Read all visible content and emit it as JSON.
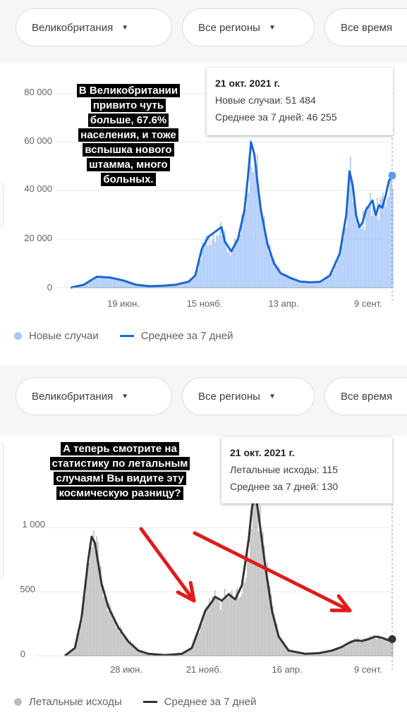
{
  "filters": {
    "country": "Великобритания",
    "region": "Все регионы",
    "period": "Все время"
  },
  "colors": {
    "cases_area": "#a8c7fa",
    "cases_line": "#1a67d2",
    "deaths_area": "#bdbdbd",
    "deaths_line": "#333333",
    "arrow": "#e01b1b"
  },
  "chart_data": [
    {
      "type": "area",
      "series": [
        {
          "name": "Новые случаи",
          "kind": "bars"
        },
        {
          "name": "Среднее за 7 дней",
          "kind": "line"
        }
      ],
      "y_ticks": [
        "0",
        "20 000",
        "40 000",
        "60 000",
        "80 000"
      ],
      "ylim": [
        0,
        80000
      ],
      "x_ticks": [
        "19 июн.",
        "15 нояб.",
        "13 апр.",
        "9 сент."
      ],
      "avg_points": [
        [
          0,
          0
        ],
        [
          4,
          1200
        ],
        [
          8,
          4500
        ],
        [
          12,
          4200
        ],
        [
          16,
          3000
        ],
        [
          20,
          1200
        ],
        [
          24,
          600
        ],
        [
          28,
          800
        ],
        [
          32,
          1200
        ],
        [
          36,
          2500
        ],
        [
          38,
          5000
        ],
        [
          40,
          16000
        ],
        [
          42,
          21000
        ],
        [
          44,
          23000
        ],
        [
          46,
          25000
        ],
        [
          47,
          19000
        ],
        [
          49,
          15000
        ],
        [
          51,
          20000
        ],
        [
          53,
          32000
        ],
        [
          54,
          45000
        ],
        [
          55,
          60000
        ],
        [
          56,
          55000
        ],
        [
          57,
          43000
        ],
        [
          58,
          32000
        ],
        [
          60,
          18000
        ],
        [
          62,
          10000
        ],
        [
          64,
          6000
        ],
        [
          67,
          4000
        ],
        [
          70,
          2500
        ],
        [
          73,
          2200
        ],
        [
          76,
          2400
        ],
        [
          79,
          5000
        ],
        [
          82,
          14000
        ],
        [
          84,
          30000
        ],
        [
          85,
          48000
        ],
        [
          86,
          42000
        ],
        [
          87,
          30000
        ],
        [
          88,
          25000
        ],
        [
          89,
          27000
        ],
        [
          90,
          32000
        ],
        [
          91,
          34000
        ],
        [
          92,
          36000
        ],
        [
          93,
          30000
        ],
        [
          94,
          34000
        ],
        [
          95,
          33000
        ],
        [
          96,
          38000
        ],
        [
          97,
          44000
        ],
        [
          98,
          46255
        ]
      ],
      "tooltip": {
        "date": "21 окт. 2021 г.",
        "line1": "Новые случаи: 51 484",
        "line2": "Среднее за 7 дней: 46 255"
      },
      "legend": [
        "Новые случаи",
        "Среднее за 7 дней"
      ],
      "annotation": [
        "В Великобритании",
        "привито чуть",
        "больше, 67.6%",
        "населения, и тоже",
        "вспышка нового",
        "штамма, много",
        "больных."
      ]
    },
    {
      "type": "area",
      "series": [
        {
          "name": "Летальные исходы",
          "kind": "bars"
        },
        {
          "name": "Среднее за 7 дней",
          "kind": "line"
        }
      ],
      "y_ticks": [
        "0",
        "500",
        "1 000"
      ],
      "ylim": [
        0,
        1250
      ],
      "x_ticks": [
        "28 июн.",
        "21 нояб.",
        "16 апр.",
        "9 сент."
      ],
      "avg_points": [
        [
          0,
          0
        ],
        [
          3,
          60
        ],
        [
          5,
          300
        ],
        [
          7,
          750
        ],
        [
          8,
          930
        ],
        [
          9,
          880
        ],
        [
          11,
          560
        ],
        [
          13,
          380
        ],
        [
          16,
          220
        ],
        [
          19,
          110
        ],
        [
          22,
          40
        ],
        [
          25,
          15
        ],
        [
          30,
          5
        ],
        [
          35,
          15
        ],
        [
          38,
          60
        ],
        [
          40,
          200
        ],
        [
          42,
          350
        ],
        [
          44,
          420
        ],
        [
          45,
          460
        ],
        [
          47,
          430
        ],
        [
          49,
          480
        ],
        [
          51,
          440
        ],
        [
          53,
          550
        ],
        [
          55,
          900
        ],
        [
          56,
          1150
        ],
        [
          57,
          1280
        ],
        [
          58,
          1100
        ],
        [
          60,
          700
        ],
        [
          62,
          350
        ],
        [
          64,
          150
        ],
        [
          67,
          40
        ],
        [
          72,
          15
        ],
        [
          76,
          20
        ],
        [
          80,
          40
        ],
        [
          83,
          70
        ],
        [
          85,
          100
        ],
        [
          87,
          120
        ],
        [
          89,
          115
        ],
        [
          91,
          130
        ],
        [
          93,
          150
        ],
        [
          95,
          140
        ],
        [
          97,
          120
        ],
        [
          98,
          130
        ]
      ],
      "tooltip": {
        "date": "21 окт. 2021 г.",
        "line1": "Летальные исходы: 115",
        "line2": "Среднее за 7 дней: 130"
      },
      "legend": [
        "Летальные исходы",
        "Среднее за 7 дней"
      ],
      "annotation": [
        "А теперь смотрите на",
        "статистику по летальным",
        "случаям! Вы видите эту",
        "космическую разницу?"
      ]
    }
  ]
}
